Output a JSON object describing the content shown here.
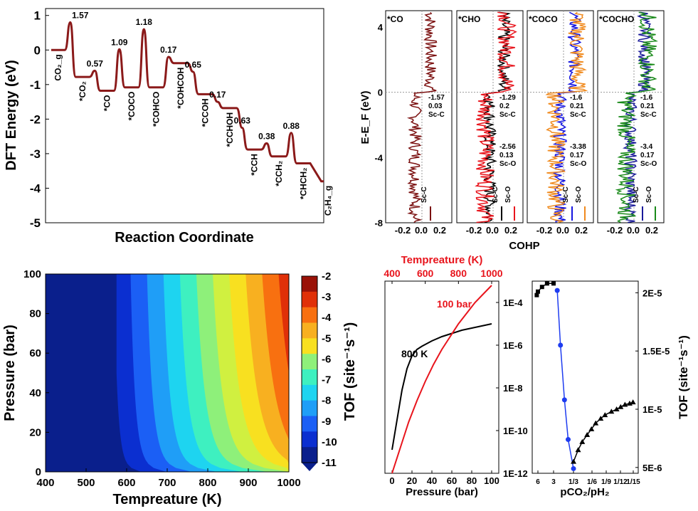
{
  "chart_data": [
    {
      "id": "energy_profile",
      "type": "line",
      "ylabel": "DFT Energy (eV)",
      "xlabel": "Reaction Coordinate",
      "ylim": [
        -5,
        1.2
      ],
      "yticks": [
        "-5",
        "-4",
        "-3",
        "-2",
        "-1",
        "0",
        "1"
      ],
      "states": [
        {
          "label": "CO₂_g",
          "y": 0.0
        },
        {
          "label": "*CO₂",
          "y": -0.78
        },
        {
          "label": "*CO",
          "y": -1.18
        },
        {
          "label": "*COCO",
          "y": -1.08
        },
        {
          "label": "*COHCO",
          "y": -1.08
        },
        {
          "label": "*COHCOH",
          "y": -0.38
        },
        {
          "label": "*CCOH",
          "y": -1.28
        },
        {
          "label": "*CCHOH",
          "y": -1.68
        },
        {
          "label": "*CCH",
          "y": -2.88
        },
        {
          "label": "*CCH₂",
          "y": -3.08
        },
        {
          "label": "*CHCH₂",
          "y": -3.28
        },
        {
          "label": "C₂H₄_g",
          "y": -3.8
        }
      ],
      "barriers": [
        {
          "label": "1.57",
          "top": 0.8
        },
        {
          "label": "0.57",
          "top": -0.6
        },
        {
          "label": "1.09",
          "top": 0.02
        },
        {
          "label": "1.18",
          "top": 0.6
        },
        {
          "label": "0.17",
          "top": -0.2
        },
        {
          "label": "0.65",
          "top": -0.63
        },
        {
          "label": "0.17",
          "top": -1.5
        },
        {
          "label": "0.63",
          "top": -2.25
        },
        {
          "label": "0.38",
          "top": -2.7
        },
        {
          "label": "0.88",
          "top": -2.4
        }
      ],
      "line_color": "#8b1a1a"
    },
    {
      "id": "cohp",
      "type": "line",
      "xlabel": "COHP",
      "ylabel": "E-E_F (eV)",
      "ylim": [
        -8,
        5
      ],
      "yticks": [
        "-8",
        "-4",
        "0",
        "4"
      ],
      "xticks": [
        "-0.2",
        "0.0",
        "0.2"
      ],
      "panels": [
        {
          "title": "*CO",
          "values": [
            {
              "v": "-1.57"
            },
            {
              "v": "0.03"
            },
            {
              "v": "Sc-C"
            }
          ],
          "values2": [],
          "legend": [
            {
              "name": "Sc-C",
              "color": "#7b1010"
            }
          ]
        },
        {
          "title": "*CHO",
          "values": [
            {
              "v": "-1.29"
            },
            {
              "v": "0.2"
            },
            {
              "v": "Sc-C"
            }
          ],
          "values2": [
            {
              "v": "-2.56"
            },
            {
              "v": "0.13"
            },
            {
              "v": "Sc-O"
            }
          ],
          "legend": [
            {
              "name": "Sc-C",
              "color": "#000000"
            },
            {
              "name": "Sc-O",
              "color": "#e8141c"
            }
          ]
        },
        {
          "title": "*COCO",
          "values": [
            {
              "v": "-1.6"
            },
            {
              "v": "0.21"
            },
            {
              "v": "Sc-C"
            }
          ],
          "values2": [
            {
              "v": "-3.38"
            },
            {
              "v": "0.17"
            },
            {
              "v": "Sc-O"
            }
          ],
          "legend": [
            {
              "name": "Sc-C",
              "color": "#1414e0"
            },
            {
              "name": "Sc-O",
              "color": "#f08a1e"
            }
          ]
        },
        {
          "title": "*COCHO",
          "values": [
            {
              "v": "-1.6"
            },
            {
              "v": "0.21"
            },
            {
              "v": "Sc-C"
            }
          ],
          "values2": [
            {
              "v": "-3.4"
            },
            {
              "v": "0.17"
            },
            {
              "v": "Sc-O"
            }
          ],
          "legend": [
            {
              "name": "Sc-C",
              "color": "#1a1a9a"
            },
            {
              "name": "Sc-O",
              "color": "#1a8a1a"
            }
          ]
        }
      ]
    },
    {
      "id": "tof_contour",
      "type": "heatmap",
      "xlabel": "Tempreature (K)",
      "ylabel": "Pressure (bar)",
      "xlim": [
        400,
        1000
      ],
      "ylim": [
        0,
        100
      ],
      "xticks": [
        "400",
        "500",
        "600",
        "700",
        "800",
        "900",
        "1000"
      ],
      "yticks": [
        "0",
        "20",
        "40",
        "60",
        "80",
        "100"
      ],
      "colorbar": {
        "label": "TOF (site⁻¹s⁻¹)",
        "ticks": [
          "-2",
          "-3",
          "-4",
          "-5",
          "-6",
          "-7",
          "-8",
          "-9",
          "-10",
          "-11"
        ],
        "range": [
          -11,
          -2
        ]
      }
    },
    {
      "id": "tof_pressure",
      "type": "line",
      "xlabel": "Pressure (bar)",
      "top_xlabel": "Tempreature (K)",
      "xticks": [
        "0",
        "20",
        "40",
        "60",
        "80",
        "100"
      ],
      "top_xticks": [
        "400",
        "600",
        "800",
        "1000"
      ],
      "yticks": [
        "1E-12",
        "1E-10",
        "1E-8",
        "1E-6",
        "1E-4"
      ],
      "series": [
        {
          "name": "800 K",
          "color": "#000000",
          "x": [
            0,
            5,
            10,
            15,
            20,
            25,
            30,
            40,
            50,
            60,
            70,
            80,
            90,
            100
          ],
          "y": [
            -10.9,
            -9.5,
            -8.1,
            -7.1,
            -6.5,
            -6.2,
            -6.05,
            -5.8,
            -5.6,
            -5.45,
            -5.3,
            -5.2,
            -5.1,
            -5.0
          ]
        },
        {
          "name": "100 bar",
          "color": "#e8141c",
          "x": [
            400,
            450,
            500,
            550,
            600,
            650,
            700,
            750,
            800,
            850,
            900,
            950,
            1000
          ],
          "y": [
            -12.3,
            -10.8,
            -9.6,
            -8.6,
            -7.7,
            -6.9,
            -6.2,
            -5.6,
            -5.0,
            -4.5,
            -4.0,
            -3.6,
            -3.2
          ]
        }
      ]
    },
    {
      "id": "tof_ratio",
      "type": "scatter",
      "xlabel": "pCO₂/pH₂",
      "ylabel": "TOF (site⁻¹s⁻¹)",
      "xticks": [
        "6",
        "3",
        "1/3",
        "1/6",
        "1/9",
        "1/12",
        "1/15"
      ],
      "yticks": [
        "5E-6",
        "1E-5",
        "1.5E-5",
        "2E-5"
      ],
      "ylim": [
        4.5e-06,
        2.1e-05
      ],
      "series": [
        {
          "name": "",
          "color": "#000000",
          "marker": "square",
          "x": [
            6.5,
            6,
            5,
            4,
            3
          ],
          "y": [
            1.98e-05,
            2.01e-05,
            2.05e-05,
            2.08e-05,
            2.08e-05
          ]
        },
        {
          "name": "",
          "color": "#1e3cf0",
          "marker": "circle",
          "x": [
            2,
            1.4,
            0.9,
            0.6,
            0.333
          ],
          "y": [
            2.02e-05,
            1.55e-05,
            1.08e-05,
            7.4e-06,
            4.9e-06
          ]
        },
        {
          "name": "",
          "color": "#000000",
          "marker": "triangle",
          "x": [
            0.333,
            0.28,
            0.24,
            0.2,
            0.17,
            0.15,
            0.13,
            0.115,
            0.1,
            0.09,
            0.083,
            0.077,
            0.071,
            0.067
          ],
          "y": [
            5.5e-06,
            6.5e-06,
            7.2e-06,
            7.8e-06,
            8.3e-06,
            8.8e-06,
            9.2e-06,
            9.5e-06,
            9.8e-06,
            1e-05,
            1.02e-05,
            1.04e-05,
            1.05e-05,
            1.06e-05
          ]
        }
      ]
    }
  ]
}
